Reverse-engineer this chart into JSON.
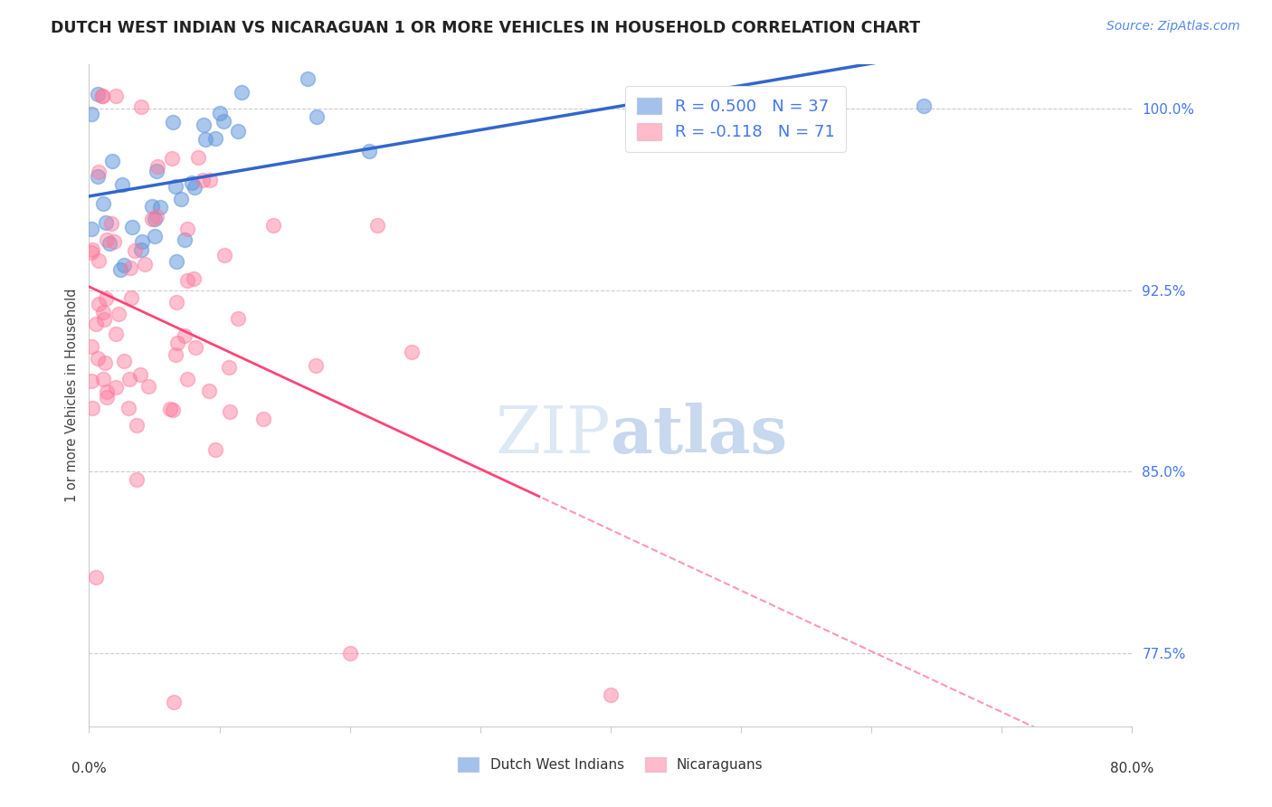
{
  "title": "DUTCH WEST INDIAN VS NICARAGUAN 1 OR MORE VEHICLES IN HOUSEHOLD CORRELATION CHART",
  "source": "Source: ZipAtlas.com",
  "ylabel": "1 or more Vehicles in Household",
  "legend_r1": "0.500",
  "legend_n1": "37",
  "legend_r2": "-0.118",
  "legend_n2": "71",
  "legend_label1": "Dutch West Indians",
  "legend_label2": "Nicaraguans",
  "blue_color": "#6699DD",
  "pink_color": "#FF7799",
  "blue_line_color": "#3366CC",
  "pink_line_color": "#FF4477",
  "watermark_color": "#dde8f5",
  "xmin": 0.0,
  "xmax": 80.0,
  "ymin": 74.5,
  "ymax": 101.8,
  "ytick_vals": [
    77.5,
    85.0,
    92.5,
    100.0
  ],
  "grid_color": "#cccccc",
  "title_color": "#222222",
  "source_color": "#5588EE",
  "tick_label_color": "#4477EE",
  "axis_label_color": "#444444"
}
